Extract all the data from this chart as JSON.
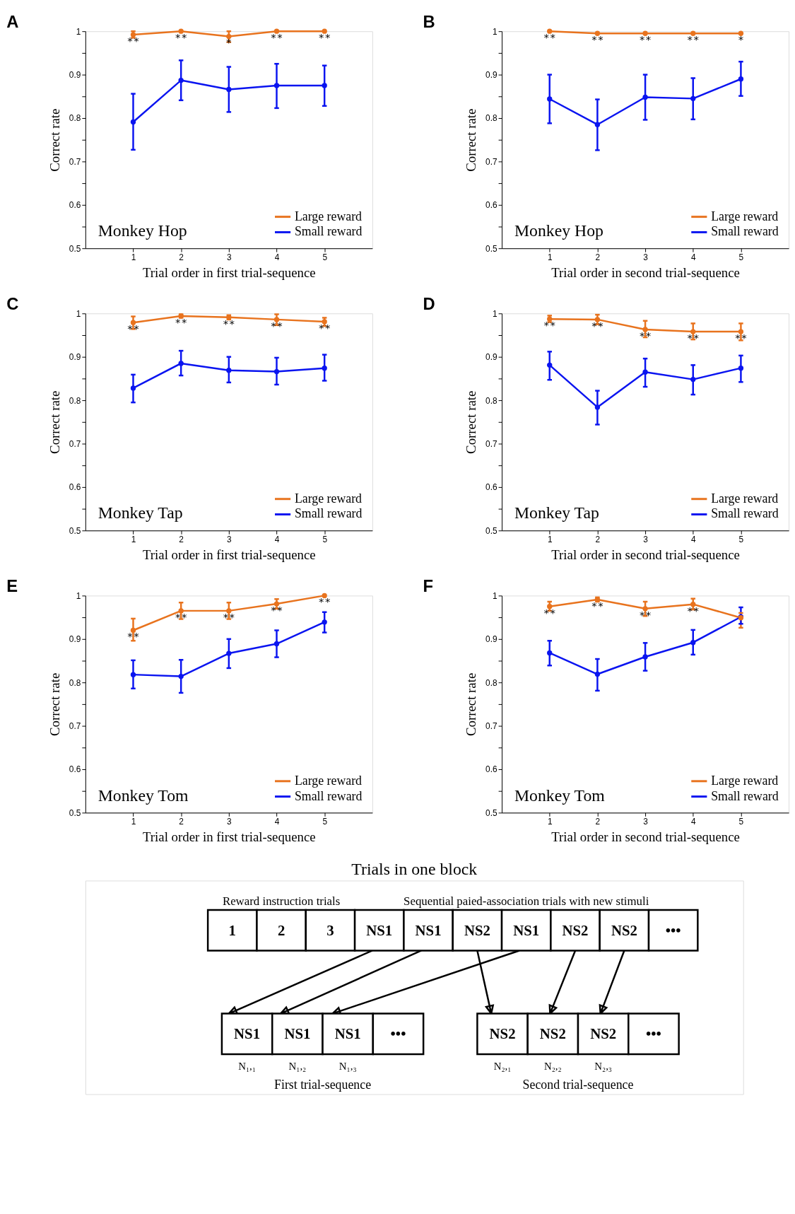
{
  "chart_data": [
    {
      "type": "line",
      "title": "A",
      "xlabel": "Trial order in first trial-sequence",
      "ylabel": "Correct rate",
      "x": [
        1,
        2,
        3,
        4,
        5
      ],
      "xlim": [
        0,
        6
      ],
      "xticks": [
        1,
        2,
        3,
        4,
        5
      ],
      "ylim": [
        0.5,
        1
      ],
      "yticks": [
        0.5,
        {
          "value": 0.55,
          "label": null
        },
        0.6,
        {
          "value": 0.65,
          "label": null
        },
        0.7,
        {
          "value": 0.75,
          "label": null
        },
        0.8,
        {
          "value": 0.85,
          "label": null
        },
        0.9,
        {
          "value": 0.95,
          "label": null
        },
        1
      ],
      "grid": false,
      "legend": "bottom right",
      "marker": "circle",
      "line_style": "solid",
      "series": [
        {
          "name": "Large reward",
          "color": "#e8731e",
          "values": [
            0.992,
            1.0,
            0.988,
            1.0,
            1.0
          ],
          "errors": [
            [
              0.985,
              1.0
            ],
            null,
            [
              0.975,
              1.0
            ],
            null,
            null
          ]
        },
        {
          "name": "Small reward",
          "color": "#0a14f0",
          "values": [
            0.791,
            0.887,
            0.866,
            0.875,
            0.875
          ],
          "errors": [
            [
              0.727,
              0.856
            ],
            [
              0.841,
              0.933
            ],
            [
              0.814,
              0.918
            ],
            [
              0.823,
              0.925
            ],
            [
              0.828,
              0.921
            ]
          ]
        }
      ],
      "annotations": [
        "Monkey Hop",
        {
          "text": "**",
          "x": 1,
          "y": 0.992
        },
        {
          "text": "**",
          "x": 2,
          "y": 1.0
        },
        {
          "text": "*",
          "x": 3,
          "y": 0.988
        },
        {
          "text": "**",
          "x": 4,
          "y": 1.0
        },
        {
          "text": "**",
          "x": 5,
          "y": 1.0
        }
      ]
    },
    {
      "type": "line",
      "title": "B",
      "xlabel": "Trial order in second trial-sequence",
      "ylabel": "Correct rate",
      "x": [
        1,
        2,
        3,
        4,
        5
      ],
      "xlim": [
        0,
        6
      ],
      "xticks": [
        1,
        2,
        3,
        4,
        5
      ],
      "ylim": [
        0.5,
        1
      ],
      "yticks": [
        0.5,
        {
          "value": 0.55,
          "label": null
        },
        0.6,
        {
          "value": 0.65,
          "label": null
        },
        0.7,
        {
          "value": 0.75,
          "label": null
        },
        0.8,
        {
          "value": 0.85,
          "label": null
        },
        0.9,
        {
          "value": 0.95,
          "label": null
        },
        1
      ],
      "grid": false,
      "legend": "bottom right",
      "marker": "circle",
      "line_style": "solid",
      "series": [
        {
          "name": "Large reward",
          "color": "#e8731e",
          "values": [
            1.0,
            0.995,
            0.995,
            0.995,
            0.995
          ]
        },
        {
          "name": "Small reward",
          "color": "#0a14f0",
          "values": [
            0.844,
            0.785,
            0.848,
            0.845,
            0.89
          ],
          "errors": [
            [
              0.788,
              0.9
            ],
            [
              0.726,
              0.843
            ],
            [
              0.796,
              0.9
            ],
            [
              0.797,
              0.892
            ],
            [
              0.851,
              0.93
            ]
          ]
        }
      ],
      "annotations": [
        "Monkey Hop",
        {
          "text": "**",
          "x": 1,
          "y": 1.0
        },
        {
          "text": "**",
          "x": 2,
          "y": 0.995
        },
        {
          "text": "**",
          "x": 3,
          "y": 0.995
        },
        {
          "text": "**",
          "x": 4,
          "y": 0.995
        },
        {
          "text": "*",
          "x": 5,
          "y": 0.995
        }
      ]
    },
    {
      "type": "line",
      "title": "C",
      "xlabel": "Trial order in first trial-sequence",
      "ylabel": "Correct rate",
      "x": [
        1,
        2,
        3,
        4,
        5
      ],
      "xlim": [
        0,
        6
      ],
      "xticks": [
        1,
        2,
        3,
        4,
        5
      ],
      "ylim": [
        0.5,
        1
      ],
      "yticks": [
        0.5,
        {
          "value": 0.55,
          "label": null
        },
        0.6,
        {
          "value": 0.65,
          "label": null
        },
        0.7,
        {
          "value": 0.75,
          "label": null
        },
        0.8,
        {
          "value": 0.85,
          "label": null
        },
        0.9,
        {
          "value": 0.95,
          "label": null
        },
        1
      ],
      "grid": false,
      "legend": "bottom right",
      "marker": "circle",
      "line_style": "solid",
      "series": [
        {
          "name": "Large reward",
          "color": "#e8731e",
          "values": [
            0.979,
            0.994,
            0.991,
            0.986,
            0.981
          ],
          "errors": [
            [
              0.964,
              0.993
            ],
            [
              0.99,
              0.998
            ],
            [
              0.986,
              0.996
            ],
            [
              0.973,
              0.998
            ],
            [
              0.971,
              0.99
            ]
          ]
        },
        {
          "name": "Small reward",
          "color": "#0a14f0",
          "values": [
            0.828,
            0.885,
            0.869,
            0.866,
            0.874
          ],
          "errors": [
            [
              0.795,
              0.859
            ],
            [
              0.857,
              0.914
            ],
            [
              0.841,
              0.9
            ],
            [
              0.836,
              0.898
            ],
            [
              0.845,
              0.905
            ]
          ]
        }
      ],
      "annotations": [
        "Monkey Tap",
        {
          "text": "**",
          "x": 1,
          "y": 0.979
        },
        {
          "text": "**",
          "x": 2,
          "y": 0.994
        },
        {
          "text": "**",
          "x": 3,
          "y": 0.991
        },
        {
          "text": "**",
          "x": 4,
          "y": 0.986
        },
        {
          "text": "**",
          "x": 5,
          "y": 0.981
        }
      ]
    },
    {
      "type": "line",
      "title": "D",
      "xlabel": "Trial order in second trial-sequence",
      "ylabel": "Correct rate",
      "x": [
        1,
        2,
        3,
        4,
        5
      ],
      "xlim": [
        0,
        6
      ],
      "xticks": [
        1,
        2,
        3,
        4,
        5
      ],
      "ylim": [
        0.5,
        1
      ],
      "yticks": [
        0.5,
        {
          "value": 0.55,
          "label": null
        },
        0.6,
        {
          "value": 0.65,
          "label": null
        },
        0.7,
        {
          "value": 0.75,
          "label": null
        },
        0.8,
        {
          "value": 0.85,
          "label": null
        },
        0.9,
        {
          "value": 0.95,
          "label": null
        },
        1
      ],
      "grid": false,
      "legend": "bottom right",
      "marker": "circle",
      "line_style": "solid",
      "series": [
        {
          "name": "Large reward",
          "color": "#e8731e",
          "values": [
            0.987,
            0.986,
            0.963,
            0.958,
            0.958
          ],
          "errors": [
            [
              0.98,
              0.995
            ],
            [
              0.975,
              0.997
            ],
            [
              0.945,
              0.983
            ],
            [
              0.94,
              0.977
            ],
            [
              0.938,
              0.977
            ]
          ]
        },
        {
          "name": "Small reward",
          "color": "#0a14f0",
          "values": [
            0.881,
            0.784,
            0.865,
            0.848,
            0.874
          ],
          "errors": [
            [
              0.847,
              0.912
            ],
            [
              0.744,
              0.822
            ],
            [
              0.831,
              0.896
            ],
            [
              0.813,
              0.881
            ],
            [
              0.842,
              0.903
            ]
          ]
        }
      ],
      "annotations": [
        "Monkey Tap",
        {
          "text": "**",
          "x": 1,
          "y": 0.987
        },
        {
          "text": "**",
          "x": 2,
          "y": 0.986
        },
        {
          "text": "**",
          "x": 3,
          "y": 0.963
        },
        {
          "text": "**",
          "x": 4,
          "y": 0.958
        },
        {
          "text": "**",
          "x": 5,
          "y": 0.958
        }
      ]
    },
    {
      "type": "line",
      "title": "E",
      "xlabel": "Trial order in first trial-sequence",
      "ylabel": "Correct rate",
      "x": [
        1,
        2,
        3,
        4,
        5
      ],
      "xlim": [
        0,
        6
      ],
      "xticks": [
        1,
        2,
        3,
        4,
        5
      ],
      "ylim": [
        0.5,
        1
      ],
      "yticks": [
        0.5,
        {
          "value": 0.55,
          "label": null
        },
        0.6,
        {
          "value": 0.65,
          "label": null
        },
        0.7,
        {
          "value": 0.75,
          "label": null
        },
        0.8,
        {
          "value": 0.85,
          "label": null
        },
        0.9,
        {
          "value": 0.95,
          "label": null
        },
        1
      ],
      "grid": false,
      "legend": "bottom right",
      "marker": "circle",
      "line_style": "solid",
      "series": [
        {
          "name": "Large reward",
          "color": "#e8731e",
          "values": [
            0.92,
            0.965,
            0.965,
            0.981,
            1.0
          ],
          "errors": [
            [
              0.896,
              0.947
            ],
            [
              0.946,
              0.984
            ],
            [
              0.946,
              0.984
            ],
            [
              0.97,
              0.992
            ],
            null
          ]
        },
        {
          "name": "Small reward",
          "color": "#0a14f0",
          "values": [
            0.818,
            0.814,
            0.867,
            0.889,
            0.939
          ],
          "errors": [
            [
              0.786,
              0.851
            ],
            [
              0.776,
              0.852
            ],
            [
              0.833,
              0.9
            ],
            [
              0.858,
              0.92
            ],
            [
              0.915,
              0.962
            ]
          ]
        }
      ],
      "annotations": [
        "Monkey Tom",
        {
          "text": "**",
          "x": 1,
          "y": 0.92
        },
        {
          "text": "**",
          "x": 2,
          "y": 0.965
        },
        {
          "text": "**",
          "x": 3,
          "y": 0.965
        },
        {
          "text": "**",
          "x": 4,
          "y": 0.981
        },
        {
          "text": "**",
          "x": 5,
          "y": 1.0
        }
      ]
    },
    {
      "type": "line",
      "title": "F",
      "xlabel": "Trial order in second trial-sequence",
      "ylabel": "Correct rate",
      "x": [
        1,
        2,
        3,
        4,
        5
      ],
      "xlim": [
        0,
        6
      ],
      "xticks": [
        1,
        2,
        3,
        4,
        5
      ],
      "ylim": [
        0.5,
        1
      ],
      "yticks": [
        0.5,
        {
          "value": 0.55,
          "label": null
        },
        0.6,
        {
          "value": 0.65,
          "label": null
        },
        0.7,
        {
          "value": 0.75,
          "label": null
        },
        0.8,
        {
          "value": 0.85,
          "label": null
        },
        0.9,
        {
          "value": 0.95,
          "label": null
        },
        1
      ],
      "grid": false,
      "legend": "bottom right",
      "marker": "circle",
      "line_style": "solid",
      "series": [
        {
          "name": "Large reward",
          "color": "#e8731e",
          "values": [
            0.975,
            0.991,
            0.97,
            0.98,
            0.949
          ],
          "errors": [
            [
              0.965,
              0.986
            ],
            [
              0.986,
              0.996
            ],
            [
              0.953,
              0.986
            ],
            [
              0.968,
              0.993
            ],
            [
              0.926,
              0.96
            ]
          ]
        },
        {
          "name": "Small reward",
          "color": "#0a14f0",
          "values": [
            0.868,
            0.819,
            0.859,
            0.892,
            0.951
          ],
          "errors": [
            [
              0.839,
              0.896
            ],
            [
              0.781,
              0.854
            ],
            [
              0.827,
              0.891
            ],
            [
              0.864,
              0.921
            ],
            [
              0.935,
              0.973
            ]
          ]
        }
      ],
      "annotations": [
        "Monkey Tom",
        {
          "text": "**",
          "x": 1,
          "y": 0.975
        },
        {
          "text": "**",
          "x": 2,
          "y": 0.991
        },
        {
          "text": "**",
          "x": 3,
          "y": 0.97
        },
        {
          "text": "**",
          "x": 4,
          "y": 0.98
        }
      ]
    },
    {
      "type": "other",
      "title": "Trials in one block",
      "annotations": [
        "Reward instruction trials",
        "Sequential paied-association trials with new stimuli",
        "1",
        "2",
        "3",
        "NS1",
        "NS1",
        "NS2",
        "NS1",
        "NS2",
        "NS2",
        "•••",
        "NS1",
        "NS1",
        "NS1",
        "•••",
        "N₁,₁",
        "N₁,₂",
        "N₁,₃",
        "First trial-sequence",
        "NS2",
        "NS2",
        "NS2",
        "•••",
        "N₂,₁",
        "N₂,₂",
        "N₂,₃",
        "Second trial-sequence"
      ]
    }
  ]
}
